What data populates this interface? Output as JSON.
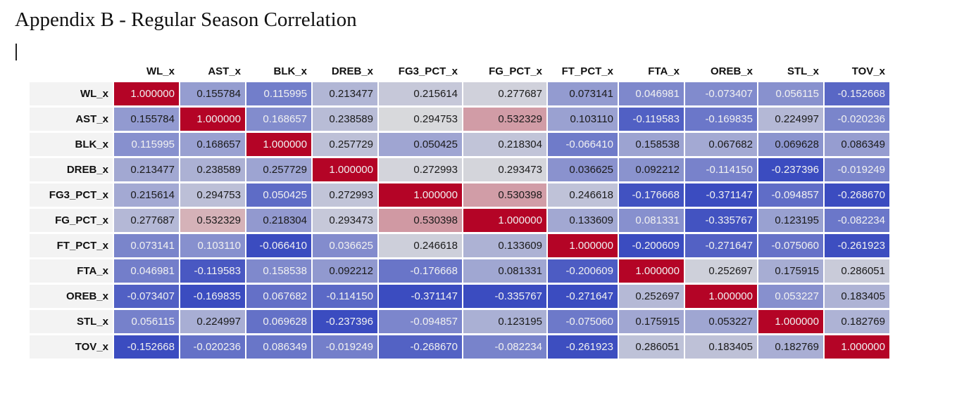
{
  "page": {
    "title": "Appendix B - Regular Season Correlation"
  },
  "table": {
    "columns": [
      "WL_x",
      "AST_x",
      "BLK_x",
      "DREB_x",
      "FG3_PCT_x",
      "FG_PCT_x",
      "FT_PCT_x",
      "FTA_x",
      "OREB_x",
      "STL_x",
      "TOV_x"
    ],
    "rows": [
      {
        "label": "WL_x",
        "cells": [
          "1.000000",
          "0.155784",
          "0.115995",
          "0.213477",
          "0.215614",
          "0.277687",
          "0.073141",
          "0.046981",
          "-0.073407",
          "0.056115",
          "-0.152668"
        ]
      },
      {
        "label": "AST_x",
        "cells": [
          "0.155784",
          "1.000000",
          "0.168657",
          "0.238589",
          "0.294753",
          "0.532329",
          "0.103110",
          "-0.119583",
          "-0.169835",
          "0.224997",
          "-0.020236"
        ]
      },
      {
        "label": "BLK_x",
        "cells": [
          "0.115995",
          "0.168657",
          "1.000000",
          "0.257729",
          "0.050425",
          "0.218304",
          "-0.066410",
          "0.158538",
          "0.067682",
          "0.069628",
          "0.086349"
        ]
      },
      {
        "label": "DREB_x",
        "cells": [
          "0.213477",
          "0.238589",
          "0.257729",
          "1.000000",
          "0.272993",
          "0.293473",
          "0.036625",
          "0.092212",
          "-0.114150",
          "-0.237396",
          "-0.019249"
        ]
      },
      {
        "label": "FG3_PCT_x",
        "cells": [
          "0.215614",
          "0.294753",
          "0.050425",
          "0.272993",
          "1.000000",
          "0.530398",
          "0.246618",
          "-0.176668",
          "-0.371147",
          "-0.094857",
          "-0.268670"
        ]
      },
      {
        "label": "FG_PCT_x",
        "cells": [
          "0.277687",
          "0.532329",
          "0.218304",
          "0.293473",
          "0.530398",
          "1.000000",
          "0.133609",
          "0.081331",
          "-0.335767",
          "0.123195",
          "-0.082234"
        ]
      },
      {
        "label": "FT_PCT_x",
        "cells": [
          "0.073141",
          "0.103110",
          "-0.066410",
          "0.036625",
          "0.246618",
          "0.133609",
          "1.000000",
          "-0.200609",
          "-0.271647",
          "-0.075060",
          "-0.261923"
        ]
      },
      {
        "label": "FTA_x",
        "cells": [
          "0.046981",
          "-0.119583",
          "0.158538",
          "0.092212",
          "-0.176668",
          "0.081331",
          "-0.200609",
          "1.000000",
          "0.252697",
          "0.175915",
          "0.286051"
        ]
      },
      {
        "label": "OREB_x",
        "cells": [
          "-0.073407",
          "-0.169835",
          "0.067682",
          "-0.114150",
          "-0.371147",
          "-0.335767",
          "-0.271647",
          "0.252697",
          "1.000000",
          "0.053227",
          "0.183405"
        ]
      },
      {
        "label": "STL_x",
        "cells": [
          "0.056115",
          "0.224997",
          "0.069628",
          "-0.237396",
          "-0.094857",
          "0.123195",
          "-0.075060",
          "0.175915",
          "0.053227",
          "1.000000",
          "0.182769"
        ]
      },
      {
        "label": "TOV_x",
        "cells": [
          "-0.152668",
          "-0.020236",
          "0.086349",
          "-0.019249",
          "-0.268670",
          "-0.082234",
          "-0.261923",
          "0.286051",
          "0.183405",
          "0.182769",
          "1.000000"
        ]
      }
    ]
  },
  "colors": {
    "colormap": "coolwarm",
    "diverging_low": "#3b4cc0",
    "diverging_mid": "#dddddd",
    "diverging_high": "#b40426"
  }
}
